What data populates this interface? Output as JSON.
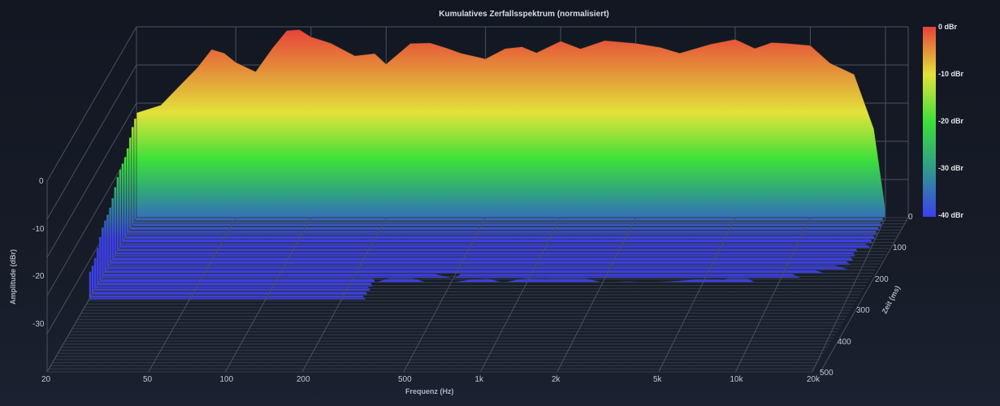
{
  "chart_data": {
    "type": "waterfall-3d-surface",
    "title": "Kumulatives Zerfallsspektrum (normalisiert)",
    "xlabel": "Frequenz (Hz)",
    "ylabel": "Amplitude (dBr)",
    "zlabel": "Zeit (ms)",
    "x_scale": "log",
    "x_range": [
      20,
      20000
    ],
    "x_ticks": [
      "20",
      "50",
      "100",
      "200",
      "500",
      "1k",
      "2k",
      "5k",
      "10k",
      "20k"
    ],
    "x_tick_values": [
      20,
      50,
      100,
      200,
      500,
      1000,
      2000,
      5000,
      10000,
      20000
    ],
    "y_range": [
      -40,
      0
    ],
    "y_ticks": [
      "0",
      "-10",
      "-20",
      "-30"
    ],
    "z_range": [
      0,
      500
    ],
    "z_ticks": [
      "0",
      "100",
      "200",
      "300",
      "400",
      "500"
    ],
    "colorbar": {
      "labels": [
        "0 dBr",
        "-10 dBr",
        "-20 dBr",
        "-30 dBr",
        "-40 dBr"
      ],
      "values": [
        0,
        -10,
        -20,
        -30,
        -40
      ],
      "colors": [
        "#e8413a",
        "#e3e23a",
        "#3ee03a",
        "#2f9a8a",
        "#3c3ff0"
      ]
    },
    "grid": true,
    "legend_position": "right (colorbar)",
    "front_slice_t0_ms": {
      "frequencies_hz": [
        20,
        25,
        30,
        35,
        40,
        45,
        50,
        60,
        70,
        80,
        90,
        100,
        120,
        150,
        180,
        200,
        250,
        300,
        350,
        400,
        500,
        600,
        700,
        800,
        1000,
        1200,
        1500,
        2000,
        2500,
        3000,
        4000,
        5000,
        6000,
        7000,
        8000,
        10000,
        12000,
        15000,
        18000,
        20000
      ],
      "amplitude_dbr": [
        -18,
        -17,
        -12,
        -8,
        -5,
        -6,
        -7,
        -9,
        -5,
        -1,
        0,
        -2,
        -4,
        -6,
        -5,
        -8,
        -4,
        -3,
        -4,
        -6,
        -7,
        -4,
        -4,
        -6,
        -3,
        -4,
        -3,
        -4,
        -4,
        -5,
        -4,
        -3,
        -4,
        -3,
        -4,
        -4,
        -7,
        -10,
        -22,
        -38
      ]
    },
    "decay_slices": 20
  }
}
